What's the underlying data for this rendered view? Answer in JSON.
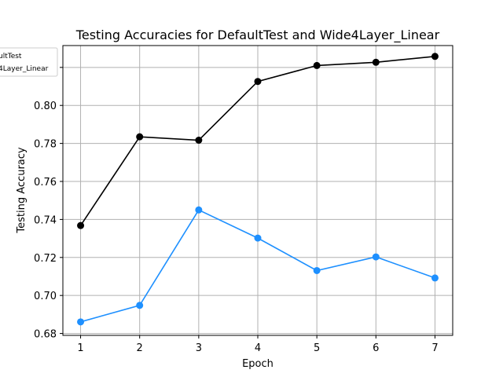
{
  "chart_data": {
    "type": "line",
    "title": "Testing Accuracies for DefaultTest and Wide4Layer_Linear",
    "xlabel": "Epoch",
    "ylabel": "Testing Accuracy",
    "x": [
      1,
      2,
      3,
      4,
      5,
      6,
      7
    ],
    "xlim": [
      0.7,
      7.3
    ],
    "ylim": [
      0.679,
      0.8315
    ],
    "yticks": [
      0.68,
      0.7,
      0.72,
      0.74,
      0.76,
      0.78,
      0.8,
      0.82
    ],
    "ytick_labels": [
      "0.68",
      "0.70",
      "0.72",
      "0.74",
      "0.76",
      "0.78",
      "0.80",
      ""
    ],
    "grid": true,
    "legend": "top-left, partially clipped",
    "series": [
      {
        "name": "DefaultTest",
        "legend_label": "ultTest",
        "color": "#000000",
        "values": [
          0.7368,
          0.7835,
          0.7817,
          0.8126,
          0.821,
          0.8227,
          0.8258
        ]
      },
      {
        "name": "Wide4Layer_Linear",
        "legend_label": "4Layer_Linear",
        "color": "#1e90ff",
        "values": [
          0.6861,
          0.6948,
          0.745,
          0.7302,
          0.7131,
          0.7203,
          0.7092
        ]
      }
    ]
  }
}
